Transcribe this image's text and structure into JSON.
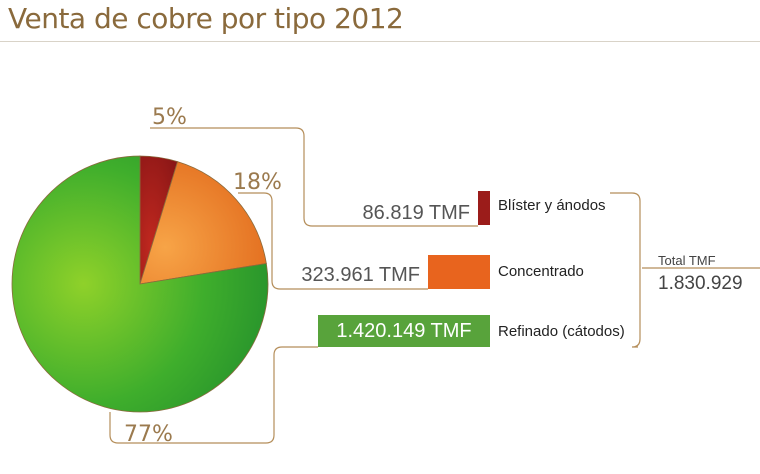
{
  "chart_data": {
    "type": "pie",
    "title": "Venta de cobre por tipo 2012",
    "slices": [
      {
        "label": "Blíster y ánodos",
        "value": 86819,
        "value_text": "86.819 TMF",
        "percent_text": "5%",
        "color": "#9b1c1a"
      },
      {
        "label": "Concentrado",
        "value": 323961,
        "value_text": "323.961 TMF",
        "percent_text": "18%",
        "color": "#e8641e"
      },
      {
        "label": "Refinado (cátodos)",
        "value": 1420149,
        "value_text": "1.420.149 TMF",
        "percent_text": "77%",
        "color": "#3aa52a"
      }
    ],
    "total": {
      "label": "Total TMF",
      "value": 1830929,
      "value_text": "1.830.929"
    }
  }
}
